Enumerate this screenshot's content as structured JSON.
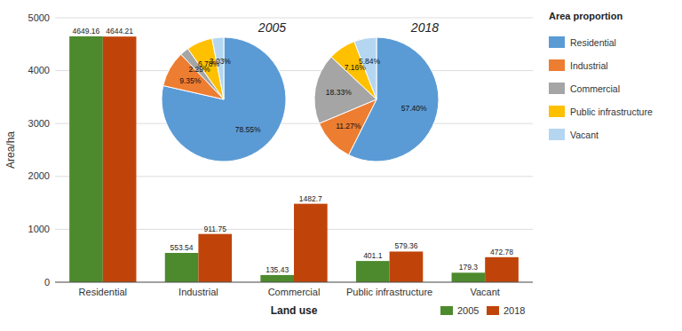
{
  "chart_data": [
    {
      "type": "bar",
      "categories": [
        "Residential",
        "Industrial",
        "Commercial",
        "Public infrastructure",
        "Vacant"
      ],
      "series": [
        {
          "name": "2005",
          "color": "#4d8a2e",
          "values": [
            4649.16,
            553.54,
            135.43,
            401.1,
            179.3
          ]
        },
        {
          "name": "2018",
          "color": "#c0440a",
          "values": [
            4644.21,
            911.75,
            1482.7,
            579.36,
            472.78
          ]
        }
      ],
      "xlabel": "Land use",
      "ylabel": "Area/ha",
      "ylim": [
        0,
        5000
      ],
      "yticks": [
        0,
        1000,
        2000,
        3000,
        4000,
        5000
      ],
      "grid": true,
      "data_labels": true,
      "legend": "lower right"
    },
    {
      "type": "pie",
      "title": "2005",
      "legend_title": "Area proportion",
      "categories": [
        "Residential",
        "Industrial",
        "Commercial",
        "Public infrastructure",
        "Vacant"
      ],
      "values": [
        78.55,
        9.35,
        2.29,
        6.78,
        3.03
      ],
      "value_labels": [
        "78.55%",
        "9.35%",
        "2.29%",
        "6.78%",
        "3.03%"
      ],
      "colors": [
        "#5b9bd5",
        "#ed7d31",
        "#a5a5a5",
        "#ffc000",
        "#b4d6f0"
      ],
      "data_labels": true,
      "legend": "right"
    },
    {
      "type": "pie",
      "title": "2018",
      "values": [
        57.4,
        11.27,
        18.33,
        7.16,
        5.84
      ],
      "value_labels": [
        "57.40%",
        "11.27%",
        "18.33%",
        "7.16%",
        "5.84%"
      ],
      "colors": [
        "#5b9bd5",
        "#ed7d31",
        "#a5a5a5",
        "#ffc000",
        "#b4d6f0"
      ],
      "data_labels": true
    }
  ]
}
